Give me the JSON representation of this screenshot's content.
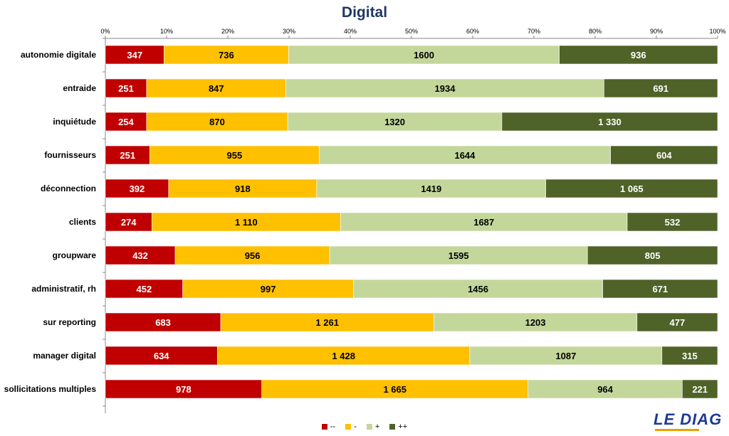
{
  "chart_data": {
    "type": "bar",
    "orientation": "horizontal",
    "stacking": "percent",
    "title": "Digital",
    "categories": [
      "autonomie digitale",
      "entraide",
      "inquiétude",
      "fournisseurs",
      "déconnection",
      "clients",
      "groupware",
      "administratif, rh",
      "sur reporting",
      "manager digital",
      "sollicitations multiples"
    ],
    "series": [
      {
        "name": "--",
        "color": "#c00000",
        "label_color": "#ffffff",
        "values": [
          347,
          251,
          254,
          251,
          392,
          274,
          432,
          452,
          683,
          634,
          978
        ],
        "labels": [
          "347",
          "251",
          "254",
          "251",
          "392",
          "274",
          "432",
          "452",
          "683",
          "634",
          "978"
        ]
      },
      {
        "name": "-",
        "color": "#ffc000",
        "label_color": "#000000",
        "values": [
          736,
          847,
          870,
          955,
          918,
          1110,
          956,
          997,
          1261,
          1428,
          1665
        ],
        "labels": [
          "736",
          "847",
          "870",
          "955",
          "918",
          "1 110",
          "956",
          "997",
          "1 261",
          "1 428",
          "1 665"
        ]
      },
      {
        "name": "+",
        "color": "#c4d79b",
        "label_color": "#000000",
        "values": [
          1600,
          1934,
          1320,
          1644,
          1419,
          1687,
          1595,
          1456,
          1203,
          1087,
          964
        ],
        "labels": [
          "1600",
          "1934",
          "1320",
          "1644",
          "1419",
          "1687",
          "1595",
          "1456",
          "1203",
          "1087",
          "964"
        ]
      },
      {
        "name": "++",
        "color": "#4f6228",
        "label_color": "#ffffff",
        "values": [
          936,
          691,
          1330,
          604,
          1065,
          532,
          805,
          671,
          477,
          315,
          221
        ],
        "labels": [
          "936",
          "691",
          "1 330",
          "604",
          "1 065",
          "532",
          "805",
          "671",
          "477",
          "315",
          "221"
        ]
      }
    ],
    "x_ticks": [
      "0%",
      "10%",
      "20%",
      "30%",
      "40%",
      "50%",
      "60%",
      "70%",
      "80%",
      "90%",
      "100%"
    ],
    "xlim": [
      0,
      100
    ],
    "x_axis_position": "top",
    "grid": false,
    "legend_position": "bottom"
  },
  "brand": {
    "logo_text": "LE DIAG",
    "logo_color": "#1f3a93",
    "logo_accent": "#e8a200"
  }
}
